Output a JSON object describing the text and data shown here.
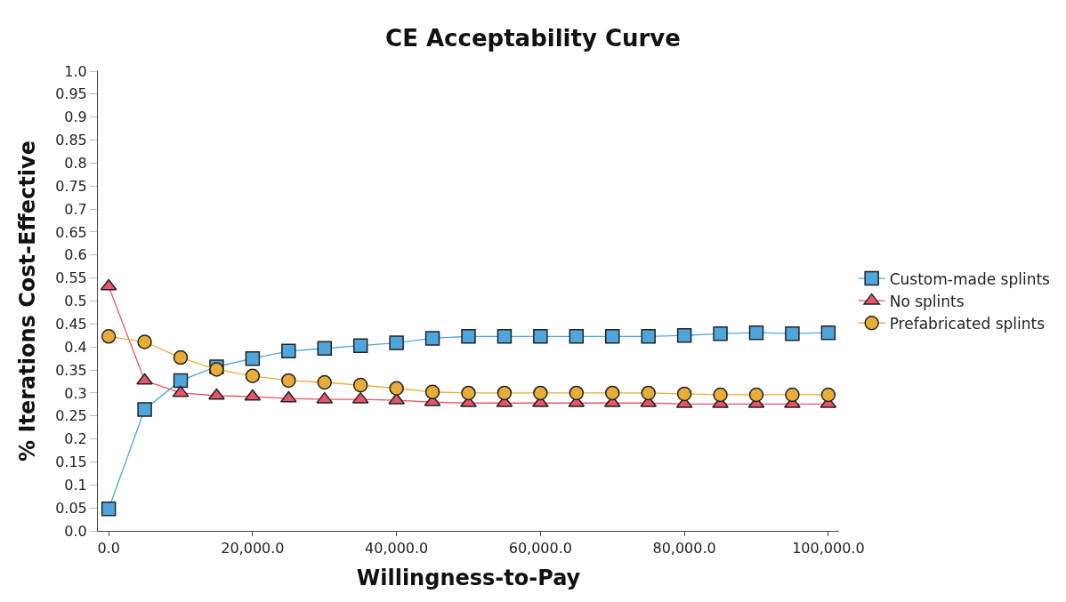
{
  "chart_data": {
    "type": "line",
    "title": "CE Acceptability Curve",
    "xlabel": "Willingness-to-Pay",
    "ylabel": "% Iterations Cost-Effective",
    "x": [
      0,
      5000,
      10000,
      15000,
      20000,
      25000,
      30000,
      35000,
      40000,
      45000,
      50000,
      55000,
      60000,
      65000,
      70000,
      75000,
      80000,
      85000,
      90000,
      95000,
      100000
    ],
    "series": [
      {
        "name": "Custom-made splints",
        "color": "#4ea6dc",
        "marker": "square",
        "values": [
          0.048,
          0.264,
          0.327,
          0.357,
          0.375,
          0.391,
          0.397,
          0.403,
          0.409,
          0.419,
          0.423,
          0.423,
          0.423,
          0.423,
          0.423,
          0.423,
          0.425,
          0.429,
          0.431,
          0.429,
          0.431
        ]
      },
      {
        "name": "No splints",
        "color": "#e8546a",
        "marker": "triangle",
        "values": [
          0.532,
          0.327,
          0.3,
          0.294,
          0.292,
          0.288,
          0.286,
          0.286,
          0.284,
          0.28,
          0.278,
          0.278,
          0.278,
          0.278,
          0.278,
          0.278,
          0.276,
          0.276,
          0.276,
          0.276,
          0.276
        ]
      },
      {
        "name": "Prefabricated splints",
        "color": "#e8ac38",
        "marker": "circle",
        "values": [
          0.423,
          0.411,
          0.377,
          0.351,
          0.337,
          0.327,
          0.323,
          0.317,
          0.31,
          0.302,
          0.3,
          0.3,
          0.3,
          0.3,
          0.3,
          0.3,
          0.298,
          0.296,
          0.296,
          0.296,
          0.296
        ]
      }
    ],
    "xlim": [
      -1500,
      101500
    ],
    "xticks": [
      {
        "value": 0,
        "label": "0.0"
      },
      {
        "value": 20000,
        "label": "20,000.0"
      },
      {
        "value": 40000,
        "label": "40,000.0"
      },
      {
        "value": 60000,
        "label": "60,000.0"
      },
      {
        "value": 80000,
        "label": "80,000.0"
      },
      {
        "value": 100000,
        "label": "100,000.0"
      }
    ],
    "ylim": [
      0,
      1
    ],
    "yticks": [
      {
        "value": 0,
        "label": "0.0"
      },
      0.05,
      0.1,
      0.15,
      0.2,
      0.25,
      0.3,
      0.35,
      0.4,
      0.45,
      0.5,
      0.55,
      0.6,
      0.65,
      0.7,
      0.75,
      0.8,
      0.85,
      0.9,
      0.95,
      {
        "value": 1,
        "label": "1.0"
      }
    ],
    "legend": "right",
    "line_style": "solid"
  }
}
